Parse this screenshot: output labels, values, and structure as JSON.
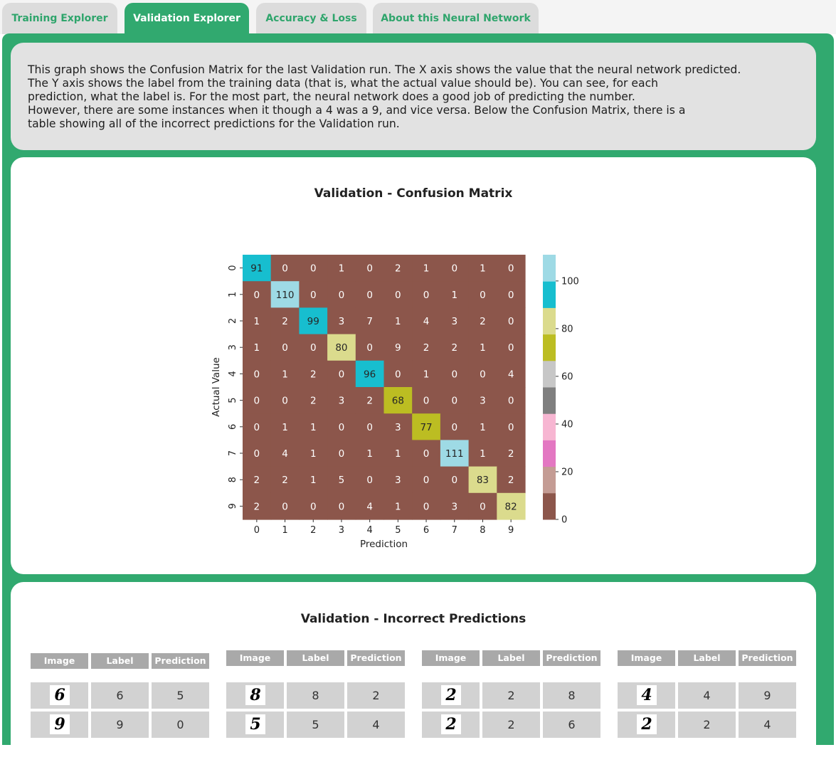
{
  "tabs": [
    {
      "label": "Training Explorer",
      "active": false
    },
    {
      "label": "Validation Explorer",
      "active": true
    },
    {
      "label": "Accuracy & Loss",
      "active": false
    },
    {
      "label": "About this Neural Network",
      "active": false
    }
  ],
  "description": {
    "lines": [
      "This graph shows the Confusion Matrix for the last Validation run. The X axis shows the value that the neural network predicted.",
      "The Y axis shows the label from the training data (that is, what the actual value should be). You can see, for each",
      "prediction, what the label is. For the most part, the neural network does a good job of predicting the number.",
      "However, there are some instances when it though a 4 was a 9, and vice versa. Below the Confusion Matrix, there is a",
      "table showing all of the incorrect predictions for the Validation run."
    ]
  },
  "confusion_card": {
    "title": "Validation - Confusion Matrix"
  },
  "chart_data": {
    "type": "heatmap",
    "title": "Validation - Confusion Matrix",
    "xlabel": "Prediction",
    "ylabel": "Actual Value",
    "x_categories": [
      "0",
      "1",
      "2",
      "3",
      "4",
      "5",
      "6",
      "7",
      "8",
      "9"
    ],
    "y_categories": [
      "0",
      "1",
      "2",
      "3",
      "4",
      "5",
      "6",
      "7",
      "8",
      "9"
    ],
    "matrix": [
      [
        91,
        0,
        0,
        1,
        0,
        2,
        1,
        0,
        1,
        0
      ],
      [
        0,
        110,
        0,
        0,
        0,
        0,
        0,
        1,
        0,
        0
      ],
      [
        1,
        2,
        99,
        3,
        7,
        1,
        4,
        3,
        2,
        0
      ],
      [
        1,
        0,
        0,
        80,
        0,
        9,
        2,
        2,
        1,
        0
      ],
      [
        0,
        1,
        2,
        0,
        96,
        0,
        1,
        0,
        0,
        4
      ],
      [
        0,
        0,
        2,
        3,
        2,
        68,
        0,
        0,
        3,
        0
      ],
      [
        0,
        1,
        1,
        0,
        0,
        3,
        77,
        0,
        1,
        0
      ],
      [
        0,
        4,
        1,
        0,
        1,
        1,
        0,
        111,
        1,
        2
      ],
      [
        2,
        2,
        1,
        5,
        0,
        3,
        0,
        0,
        83,
        2
      ],
      [
        2,
        0,
        0,
        0,
        4,
        1,
        0,
        3,
        0,
        82
      ]
    ],
    "colorbar": {
      "range": [
        0,
        111
      ],
      "ticks": [
        0,
        20,
        40,
        60,
        80,
        100
      ],
      "colors": [
        "#8c564b",
        "#c49c94",
        "#e377c2",
        "#f7b6d2",
        "#7f7f7f",
        "#c7c7c7",
        "#bcbd22",
        "#dbdb8d",
        "#17becf",
        "#9edae5"
      ]
    }
  },
  "predictions_card": {
    "title": "Validation - Incorrect Predictions",
    "headers": {
      "image": "Image",
      "label": "Label",
      "prediction": "Prediction"
    },
    "groups": [
      {
        "rows": [
          {
            "image": "digit-6",
            "label": "6",
            "prediction": "5"
          },
          {
            "image": "digit-9",
            "label": "9",
            "prediction": "0"
          }
        ]
      },
      {
        "rows": [
          {
            "image": "digit-8",
            "label": "8",
            "prediction": "2"
          },
          {
            "image": "digit-5",
            "label": "5",
            "prediction": "4"
          }
        ]
      },
      {
        "rows": [
          {
            "image": "digit-2",
            "label": "2",
            "prediction": "8"
          },
          {
            "image": "digit-2",
            "label": "2",
            "prediction": "6"
          }
        ]
      },
      {
        "rows": [
          {
            "image": "digit-4",
            "label": "4",
            "prediction": "9"
          },
          {
            "image": "digit-2",
            "label": "2",
            "prediction": "4"
          }
        ]
      }
    ]
  }
}
